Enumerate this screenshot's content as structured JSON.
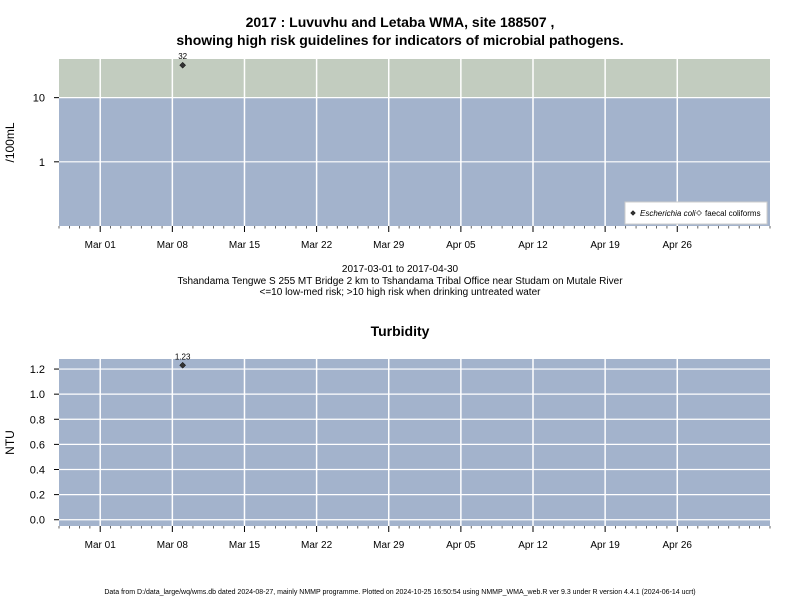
{
  "title": {
    "line1": "2017 : Luvuvhu and Letaba WMA, site 188507 ,",
    "line2": "showing high risk guidelines for indicators of microbial pathogens."
  },
  "caption": {
    "date_range": "2017-03-01 to 2017-04-30",
    "site_desc": "Tshandama Tengwe S 255 MT Bridge 2 km to Tshandama Tribal Office near Studam on Mutale River",
    "risk_note": "<=10 low-med risk; >10 high risk when drinking untreated water"
  },
  "footer": "Data from D:/data_large/wq/wms.db dated 2024-08-27, mainly NMMP programme. Plotted on 2024-10-25 16:50:54 using NMMP_WMA_web.R ver 9.3 under R version 4.4.1 (2024-06-14 ucrt)",
  "colors": {
    "low_risk_band": "#a3b3cc",
    "high_risk_band": "#c2ccbf",
    "grid": "#ffffff",
    "point": "#333333"
  },
  "chart_data": [
    {
      "type": "scatter",
      "title": "",
      "ylabel": "/100mL",
      "y_scale": "log",
      "ylim": [
        0.1,
        40
      ],
      "xlim": [
        "2017-02-25",
        "2017-05-05"
      ],
      "x_ticks": [
        "Mar 01",
        "Mar 08",
        "Mar 15",
        "Mar 22",
        "Mar 29",
        "Apr 05",
        "Apr 12",
        "Apr 19",
        "Apr 26"
      ],
      "x_tick_dates": [
        "2017-03-01",
        "2017-03-08",
        "2017-03-15",
        "2017-03-22",
        "2017-03-29",
        "2017-04-05",
        "2017-04-12",
        "2017-04-19",
        "2017-04-26"
      ],
      "y_ticks": [
        1,
        10
      ],
      "y_tick_labels": [
        "1",
        "10"
      ],
      "guideline": 10,
      "grid": true,
      "legend_position": "bottom-right",
      "legend": [
        "Escherichia coli",
        "faecal coliforms"
      ],
      "series": [
        {
          "name": "Escherichia coli",
          "points": [
            {
              "x": "2017-03-09",
              "y": 32,
              "label": "32"
            }
          ]
        },
        {
          "name": "faecal coliforms",
          "points": []
        }
      ]
    },
    {
      "type": "scatter",
      "title": "Turbidity",
      "ylabel": "NTU",
      "y_scale": "linear",
      "ylim": [
        -0.05,
        1.28
      ],
      "xlim": [
        "2017-02-25",
        "2017-05-05"
      ],
      "x_ticks": [
        "Mar 01",
        "Mar 08",
        "Mar 15",
        "Mar 22",
        "Mar 29",
        "Apr 05",
        "Apr 12",
        "Apr 19",
        "Apr 26"
      ],
      "x_tick_dates": [
        "2017-03-01",
        "2017-03-08",
        "2017-03-15",
        "2017-03-22",
        "2017-03-29",
        "2017-04-05",
        "2017-04-12",
        "2017-04-19",
        "2017-04-26"
      ],
      "y_ticks": [
        0.0,
        0.2,
        0.4,
        0.6,
        0.8,
        1.0,
        1.2
      ],
      "y_tick_labels": [
        "0.0",
        "0.2",
        "0.4",
        "0.6",
        "0.8",
        "1.0",
        "1.2"
      ],
      "grid": true,
      "series": [
        {
          "name": "",
          "points": [
            {
              "x": "2017-03-09",
              "y": 1.23,
              "label": "1.23"
            }
          ]
        }
      ]
    }
  ]
}
